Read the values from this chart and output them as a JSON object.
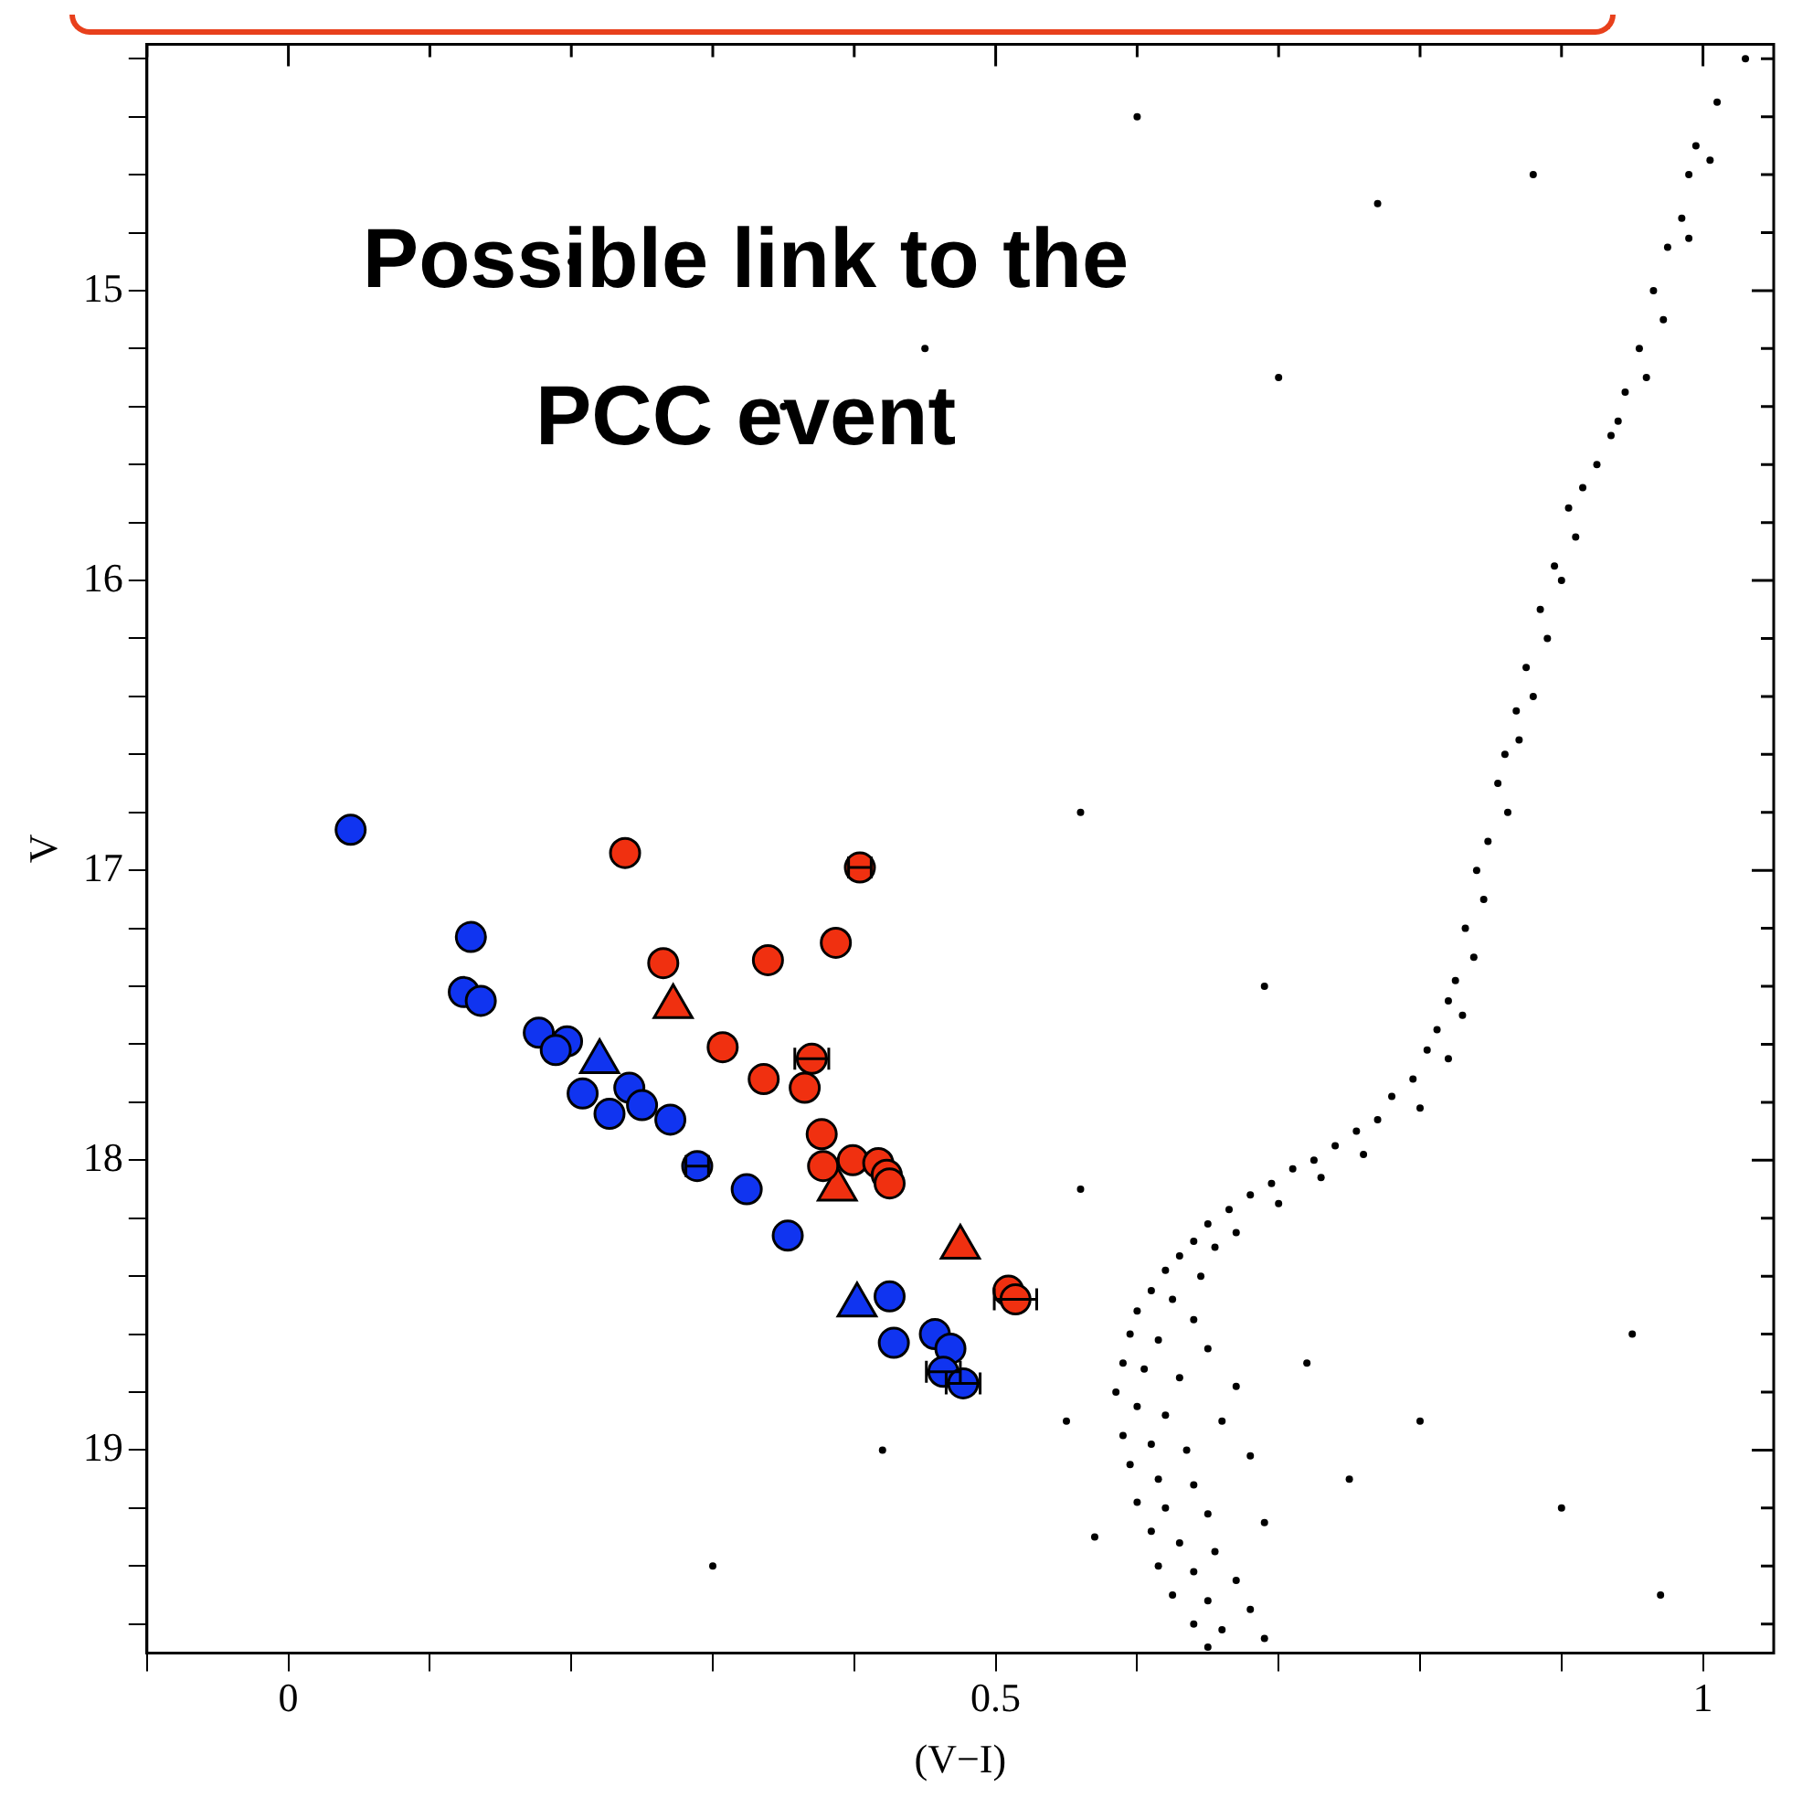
{
  "chart_data": {
    "type": "scatter",
    "xlabel": "(V−I)",
    "ylabel": "V",
    "annotations": [
      "Possible link to the PCC event"
    ],
    "xlim": [
      -0.1,
      1.05
    ],
    "ylim": [
      19.7,
      14.15
    ],
    "xticks": [
      {
        "value": -0.1,
        "label": null
      },
      0,
      {
        "value": 0.1,
        "label": null
      },
      {
        "value": 0.2,
        "label": null
      },
      {
        "value": 0.3,
        "label": null
      },
      {
        "value": 0.4,
        "label": null
      },
      0.5,
      {
        "value": 0.6,
        "label": null
      },
      {
        "value": 0.7,
        "label": null
      },
      {
        "value": 0.8,
        "label": null
      },
      {
        "value": 0.9,
        "label": null
      },
      1
    ],
    "yticks": [
      {
        "value": 14.2,
        "label": null
      },
      {
        "value": 14.4,
        "label": null
      },
      {
        "value": 14.6,
        "label": null
      },
      {
        "value": 14.8,
        "label": null
      },
      15,
      {
        "value": 15.2,
        "label": null
      },
      {
        "value": 15.4,
        "label": null
      },
      {
        "value": 15.6,
        "label": null
      },
      {
        "value": 15.8,
        "label": null
      },
      16,
      {
        "value": 16.2,
        "label": null
      },
      {
        "value": 16.4,
        "label": null
      },
      {
        "value": 16.6,
        "label": null
      },
      {
        "value": 16.8,
        "label": null
      },
      17,
      {
        "value": 17.2,
        "label": null
      },
      {
        "value": 17.4,
        "label": null
      },
      {
        "value": 17.6,
        "label": null
      },
      {
        "value": 17.8,
        "label": null
      },
      18,
      {
        "value": 18.2,
        "label": null
      },
      {
        "value": 18.4,
        "label": null
      },
      {
        "value": 18.6,
        "label": null
      },
      {
        "value": 18.8,
        "label": null
      },
      19,
      {
        "value": 19.2,
        "label": null
      },
      {
        "value": 19.4,
        "label": null
      },
      {
        "value": 19.6,
        "label": null
      }
    ],
    "grid": false,
    "legend": false,
    "series": [
      {
        "color": "#000000",
        "marker": "circle",
        "x": [
          1.03,
          1.01,
          0.995,
          1.005,
          0.99,
          0.985,
          0.975,
          0.99,
          0.965,
          0.972,
          0.955,
          0.96,
          0.945,
          0.935,
          0.94,
          0.925,
          0.915,
          0.905,
          0.91,
          0.895,
          0.9,
          0.885,
          0.89,
          0.875,
          0.88,
          0.868,
          0.87,
          0.86,
          0.855,
          0.862,
          0.848,
          0.84,
          0.845,
          0.832,
          0.838,
          0.825,
          0.82,
          0.83,
          0.812,
          0.805,
          0.82,
          0.795,
          0.78,
          0.8,
          0.77,
          0.755,
          0.74,
          0.76,
          0.725,
          0.71,
          0.73,
          0.695,
          0.68,
          0.7,
          0.665,
          0.65,
          0.67,
          0.64,
          0.655,
          0.63,
          0.62,
          0.645,
          0.61,
          0.625,
          0.6,
          0.64,
          0.595,
          0.615,
          0.65,
          0.59,
          0.605,
          0.63,
          0.67,
          0.585,
          0.6,
          0.62,
          0.66,
          0.59,
          0.61,
          0.635,
          0.68,
          0.595,
          0.615,
          0.64,
          0.6,
          0.62,
          0.65,
          0.69,
          0.61,
          0.63,
          0.655,
          0.615,
          0.64,
          0.67,
          0.625,
          0.65,
          0.68,
          0.64,
          0.66,
          0.69,
          0.65,
          0.56,
          0.55,
          0.57,
          0.72,
          0.8,
          0.75,
          0.9,
          0.95,
          0.97,
          0.69,
          0.45,
          0.35,
          0.7,
          0.56,
          0.77,
          0.3,
          0.42,
          0.2,
          0.6,
          0.88
        ],
        "values": [
          14.2,
          14.35,
          14.5,
          14.55,
          14.6,
          14.75,
          14.85,
          14.82,
          15.0,
          15.1,
          15.2,
          15.3,
          15.35,
          15.5,
          15.45,
          15.6,
          15.68,
          15.75,
          15.85,
          15.95,
          16.0,
          16.1,
          16.2,
          16.3,
          16.4,
          16.45,
          16.55,
          16.6,
          16.7,
          16.8,
          16.9,
          17.0,
          17.1,
          17.2,
          17.3,
          17.38,
          17.45,
          17.5,
          17.55,
          17.62,
          17.65,
          17.72,
          17.78,
          17.82,
          17.86,
          17.9,
          17.95,
          17.98,
          18.0,
          18.03,
          18.06,
          18.08,
          18.12,
          18.15,
          18.17,
          18.22,
          18.25,
          18.28,
          18.3,
          18.33,
          18.38,
          18.4,
          18.45,
          18.48,
          18.52,
          18.55,
          18.6,
          18.62,
          18.65,
          18.7,
          18.72,
          18.75,
          18.78,
          18.8,
          18.85,
          18.88,
          18.9,
          18.95,
          18.98,
          19.0,
          19.02,
          19.05,
          19.1,
          19.12,
          19.18,
          19.2,
          19.22,
          19.25,
          19.28,
          19.32,
          19.35,
          19.4,
          19.42,
          19.45,
          19.5,
          19.52,
          19.55,
          19.6,
          19.62,
          19.65,
          19.68,
          18.1,
          18.9,
          19.3,
          18.7,
          18.9,
          19.1,
          19.2,
          18.6,
          19.5,
          17.4,
          15.2,
          15.4,
          15.3,
          16.8,
          14.7,
          19.4,
          19.0,
          14.9,
          14.4,
          14.6
        ]
      },
      {
        "color": "#1034f0",
        "marker": "circle",
        "x": [
          0.044,
          0.129,
          0.124,
          0.136,
          0.177,
          0.197,
          0.189,
          0.208,
          0.227,
          0.241,
          0.25,
          0.27,
          0.289,
          0.324,
          0.353,
          0.425,
          0.428,
          0.457,
          0.468,
          0.463,
          0.477
        ],
        "values": [
          16.86,
          17.23,
          17.42,
          17.45,
          17.56,
          17.59,
          17.62,
          17.77,
          17.84,
          17.75,
          17.81,
          17.86,
          18.02,
          18.1,
          18.26,
          18.47,
          18.63,
          18.6,
          18.65,
          18.73,
          18.77
        ],
        "xerrors": [
          null,
          null,
          null,
          null,
          null,
          null,
          null,
          null,
          null,
          null,
          null,
          null,
          0.008,
          null,
          null,
          null,
          null,
          null,
          null,
          0.012,
          0.012
        ]
      },
      {
        "color": "#f03010",
        "marker": "circle",
        "x": [
          0.238,
          0.404,
          0.387,
          0.339,
          0.265,
          0.307,
          0.37,
          0.336,
          0.365,
          0.377,
          0.378,
          0.399,
          0.417,
          0.423,
          0.425,
          0.509,
          0.514
        ],
        "values": [
          16.94,
          16.99,
          17.25,
          17.31,
          17.32,
          17.61,
          17.65,
          17.72,
          17.75,
          17.91,
          18.02,
          18.0,
          18.01,
          18.05,
          18.08,
          18.45,
          18.48
        ],
        "xerrors": [
          null,
          0.008,
          null,
          null,
          null,
          null,
          0.012,
          null,
          null,
          null,
          null,
          null,
          null,
          null,
          null,
          null,
          0.015
        ]
      },
      {
        "color": "#1034f0",
        "marker": "triangle",
        "x": [
          0.22,
          0.402
        ],
        "values": [
          17.66,
          18.5
        ]
      },
      {
        "color": "#f03010",
        "marker": "triangle",
        "x": [
          0.272,
          0.388,
          0.475
        ],
        "values": [
          17.47,
          18.1,
          18.3
        ]
      }
    ]
  }
}
